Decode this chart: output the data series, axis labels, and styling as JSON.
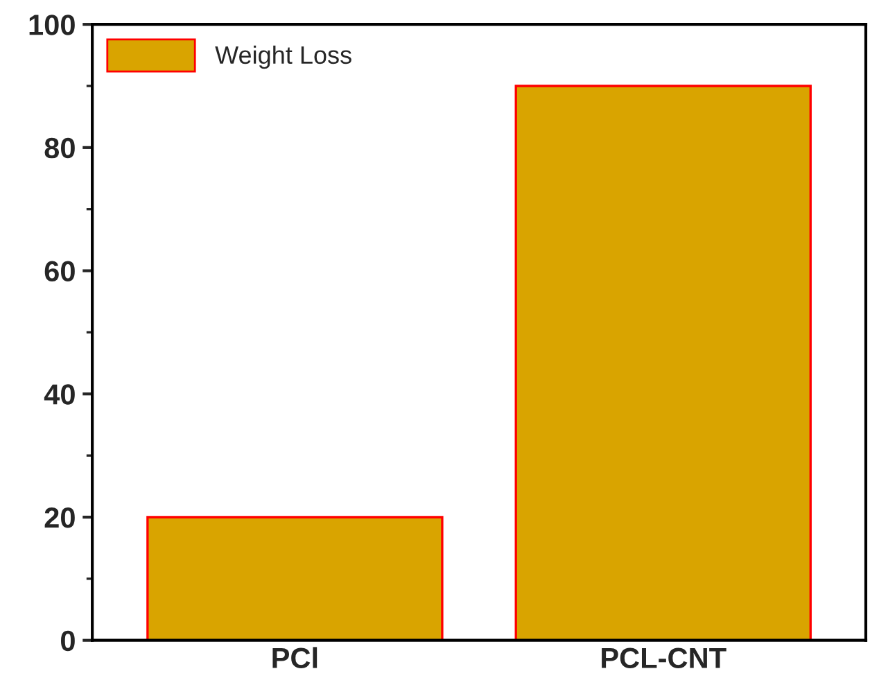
{
  "chart_data": {
    "type": "bar",
    "categories": [
      "PCl",
      "PCL-CNT"
    ],
    "series": [
      {
        "name": "Weight Loss",
        "color": "#d9a400",
        "values": [
          20,
          90
        ]
      }
    ],
    "ylim": [
      0,
      100
    ],
    "yticks": [
      0,
      20,
      40,
      60,
      80,
      100
    ],
    "grid": false,
    "legend": "top left"
  }
}
